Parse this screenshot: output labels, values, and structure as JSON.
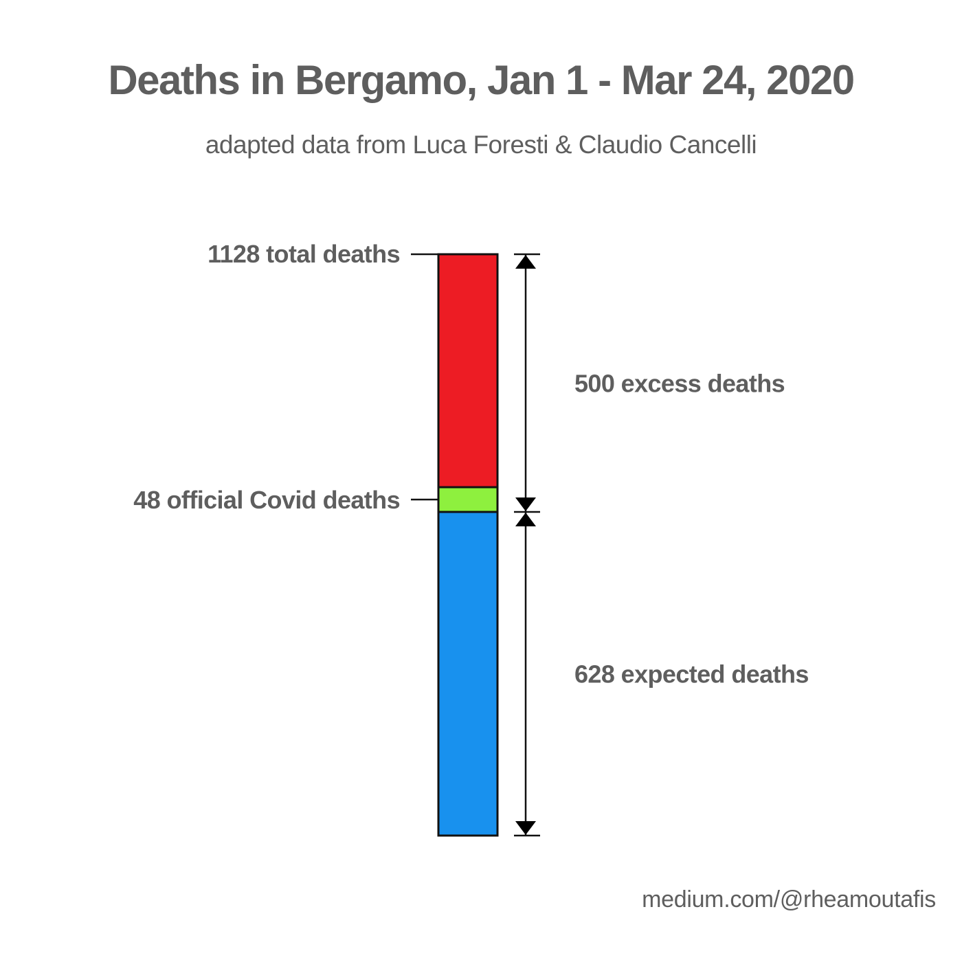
{
  "title": "Deaths in Bergamo, Jan 1 - Mar 24, 2020",
  "subtitle": "adapted data from Luca Foresti & Claudio Cancelli",
  "footer": "medium.com/@rheamoutafis",
  "chart_data": {
    "type": "bar",
    "stacked": true,
    "categories": [
      ""
    ],
    "series": [
      {
        "values": [
          628
        ],
        "color": "#1891ee"
      },
      {
        "values": [
          48
        ],
        "color": "#8ef03e"
      },
      {
        "values": [
          452
        ],
        "color": "#ed1c24"
      }
    ],
    "total": 1128,
    "ylim": [
      0,
      1128
    ],
    "grid": false,
    "annotations": {
      "total": "1128 total deaths",
      "covid": "48 official Covid deaths",
      "excess": "500 excess deaths",
      "expected": "628 expected deaths"
    }
  }
}
